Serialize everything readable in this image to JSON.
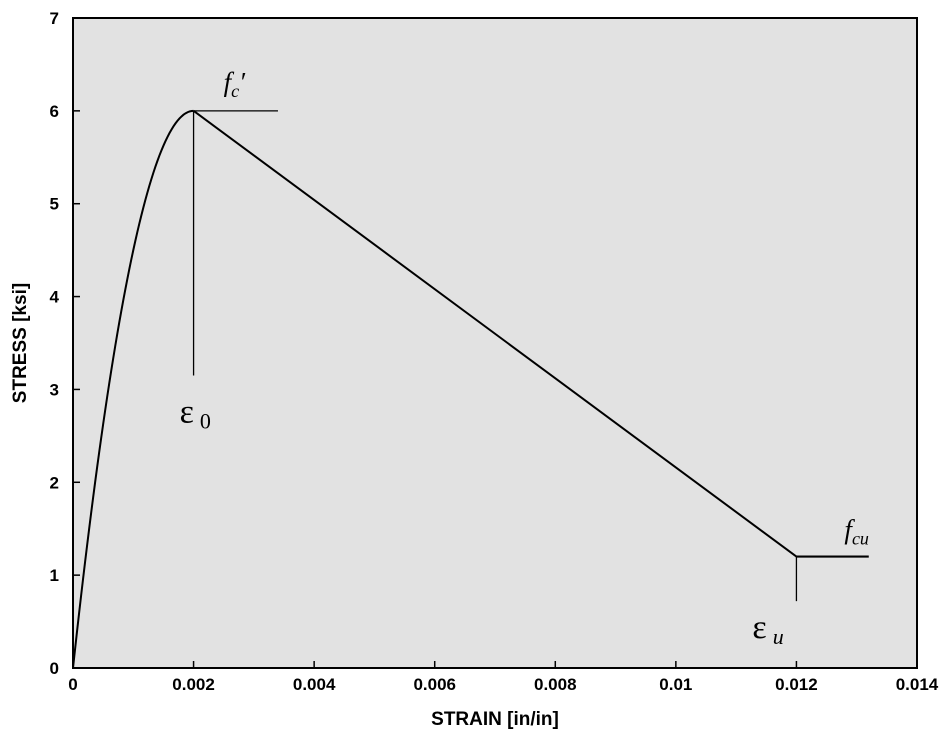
{
  "chart_data": {
    "type": "line",
    "xlabel": "STRAIN [in/in]",
    "ylabel": "STRESS [ksi]",
    "xlim": [
      0,
      0.014
    ],
    "ylim": [
      0,
      7
    ],
    "x_ticks": [
      "0",
      "0.002",
      "0.004",
      "0.006",
      "0.008",
      "0.01",
      "0.012",
      "0.014"
    ],
    "y_ticks": [
      "0",
      "1",
      "2",
      "3",
      "4",
      "5",
      "6",
      "7"
    ],
    "grid": false,
    "background_color": "#e2e2e2",
    "line_color": "#000000",
    "series": [
      {
        "rise": {
          "peak_strain": 0.002,
          "peak_stress": 6.0
        },
        "descending": [
          [
            0.002,
            6.0
          ],
          [
            0.012,
            1.2
          ]
        ],
        "plateau": [
          [
            0.012,
            1.2
          ],
          [
            0.0132,
            1.2
          ]
        ]
      }
    ],
    "annotations": [
      {
        "label": "f",
        "subscript": "c",
        "prime": "′",
        "x": 0.002,
        "y": 6.0,
        "reference_line_to_x": 0.0034
      },
      {
        "label": "ε",
        "subscript": "0",
        "x": 0.002,
        "reference_line_down_to_y": 3.15
      },
      {
        "label": "f",
        "subscript": "cu",
        "x": 0.012,
        "y": 1.2
      },
      {
        "label": "ε",
        "subscript": "u",
        "x": 0.012,
        "reference_line_down_to_y": 0.72
      }
    ]
  }
}
